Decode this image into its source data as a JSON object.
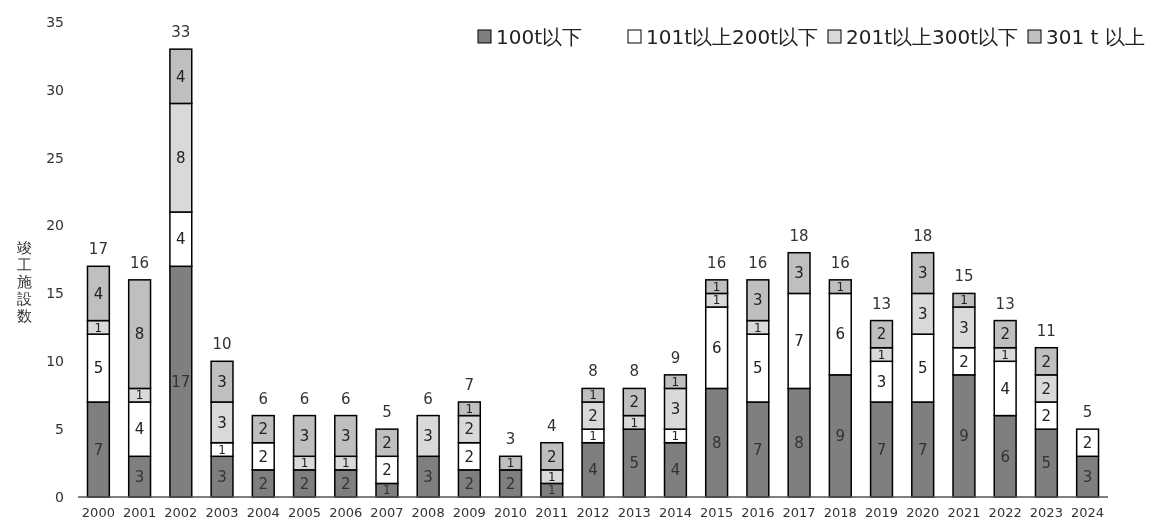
{
  "chart_data": {
    "type": "bar",
    "stacked": true,
    "ylabel": "竣工施設数",
    "categories": [
      "2000",
      "2001",
      "2002",
      "2003",
      "2004",
      "2005",
      "2006",
      "2007",
      "2008",
      "2009",
      "2010",
      "2011",
      "2012",
      "2013",
      "2014",
      "2015",
      "2016",
      "2017",
      "2018",
      "2019",
      "2020",
      "2021",
      "2022",
      "2023",
      "2024"
    ],
    "series": [
      {
        "name": "100t以下",
        "color": "#7f7f7f",
        "values": [
          7,
          3,
          17,
          3,
          2,
          2,
          2,
          1,
          3,
          2,
          2,
          1,
          4,
          5,
          4,
          8,
          7,
          8,
          9,
          7,
          7,
          9,
          6,
          5,
          3
        ],
        "value_labels": [
          "7",
          "3",
          "17",
          "3",
          "2",
          "2",
          "2",
          "1",
          "3",
          "2",
          "2",
          "1",
          "4",
          "5",
          "4",
          "8",
          "7",
          "8",
          "9",
          "7",
          "7",
          "9",
          "6",
          "5",
          "3"
        ]
      },
      {
        "name": "101t以上200t以下",
        "color": "#ffffff",
        "values": [
          5,
          4,
          4,
          1,
          2,
          0,
          0,
          2,
          0,
          2,
          0,
          0,
          1,
          0,
          1,
          6,
          5,
          7,
          6,
          3,
          5,
          2,
          4,
          2,
          2
        ],
        "value_labels": [
          "5",
          "4",
          "4",
          "1",
          "2",
          null,
          null,
          "2",
          null,
          "2",
          null,
          null,
          "1",
          null,
          "1",
          "6",
          "5",
          "7",
          "6",
          "3",
          "5",
          "2",
          "4",
          "2",
          "2"
        ]
      },
      {
        "name": "201t以上300t以下",
        "color": "#d9d9d9",
        "values": [
          1,
          1,
          8,
          3,
          0,
          1,
          1,
          0,
          3,
          2,
          0,
          1,
          2,
          1,
          3,
          1,
          1,
          0,
          0,
          1,
          3,
          3,
          1,
          2,
          0
        ],
        "value_labels": [
          "1",
          "1",
          "8",
          "3",
          null,
          "1",
          "1",
          null,
          "3",
          "2",
          null,
          "1",
          "2",
          "1",
          "3",
          "1",
          "1",
          null,
          null,
          "1",
          "3",
          "3",
          "1",
          "2",
          null
        ]
      },
      {
        "name": "301 t 以上",
        "color": "#bfbfbf",
        "values": [
          4,
          8,
          4,
          3,
          2,
          3,
          3,
          2,
          0,
          1,
          1,
          2,
          1,
          2,
          1,
          1,
          3,
          3,
          1,
          2,
          3,
          1,
          2,
          2,
          0
        ],
        "value_labels": [
          "4",
          "8",
          "4",
          "3",
          "2",
          "3",
          "3",
          "2",
          null,
          "1",
          "1",
          "2",
          "1",
          "2",
          "1",
          "1",
          "3",
          "3",
          "1",
          "2",
          "3",
          "1",
          "2",
          "2",
          null
        ]
      }
    ],
    "totals": [
      "17",
      "16",
      "33",
      "10",
      "6",
      "6",
      "6",
      "5",
      "6",
      "7",
      "3",
      "4",
      "8",
      "8",
      "9",
      "16",
      "16",
      "18",
      "16",
      "13",
      "18",
      "15",
      "13",
      "11",
      "5"
    ],
    "ylim": [
      0,
      35
    ],
    "yticks": [
      0,
      5,
      10,
      15,
      20,
      25,
      30,
      35
    ],
    "grid": false,
    "legend": "top right"
  }
}
